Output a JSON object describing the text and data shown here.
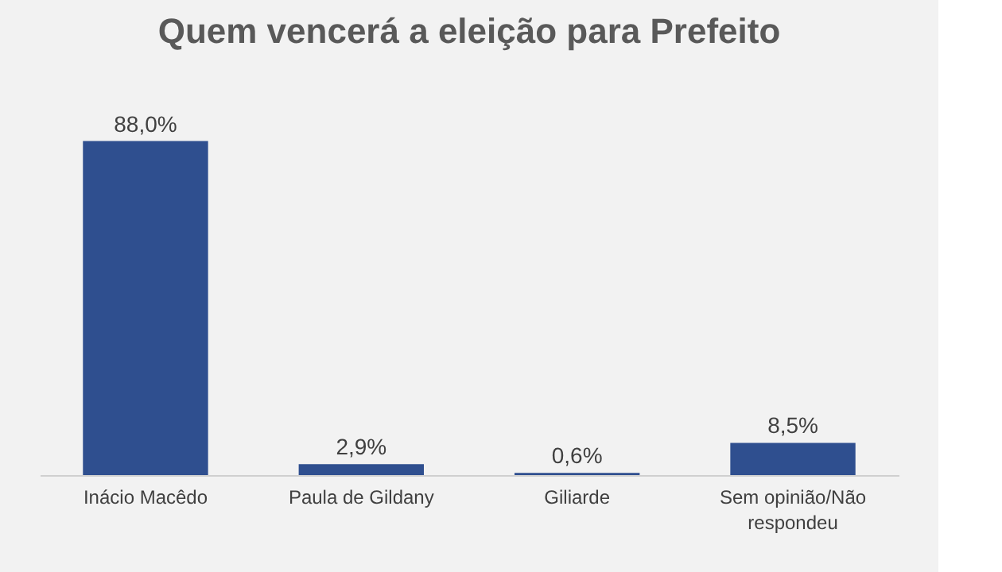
{
  "chart_data": {
    "type": "bar",
    "title": "Quem vencerá a eleição para Prefeito",
    "categories": [
      "Inácio Macêdo",
      "Paula de Gildany",
      "Giliarde",
      "Sem opinião/Não respondeu"
    ],
    "values": [
      88.0,
      2.9,
      0.6,
      8.5
    ],
    "value_labels": [
      "88,0%",
      "2,9%",
      "0,6%",
      "8,5%"
    ],
    "color": "#2f4f8f"
  }
}
